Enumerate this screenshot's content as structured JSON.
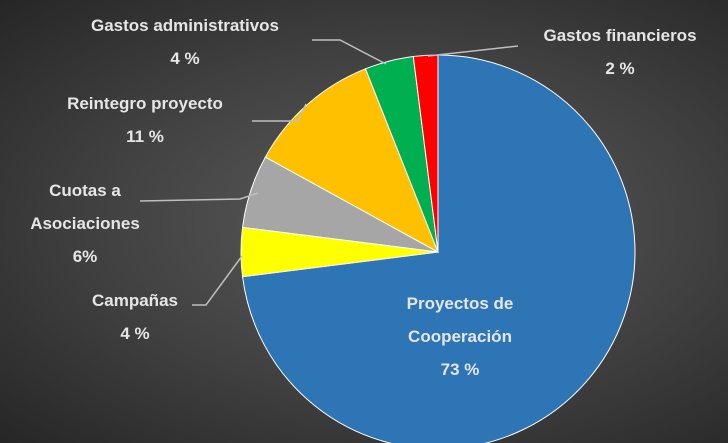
{
  "chart_data": {
    "type": "pie",
    "categories": [
      "Proyectos de Cooperación",
      "Campañas",
      "Cuotas a Asociaciones",
      "Reintegro proyecto",
      "Gastos administrativos",
      "Gastos financieros"
    ],
    "values": [
      73,
      4,
      6,
      11,
      4,
      2
    ],
    "value_labels": [
      "73 %",
      "4 %",
      "6%",
      "11 %",
      "4 %",
      "2 %"
    ],
    "colors": [
      "#2e75b6",
      "#ffff00",
      "#a6a6a6",
      "#ffc000",
      "#00b050",
      "#ff0000"
    ]
  }
}
